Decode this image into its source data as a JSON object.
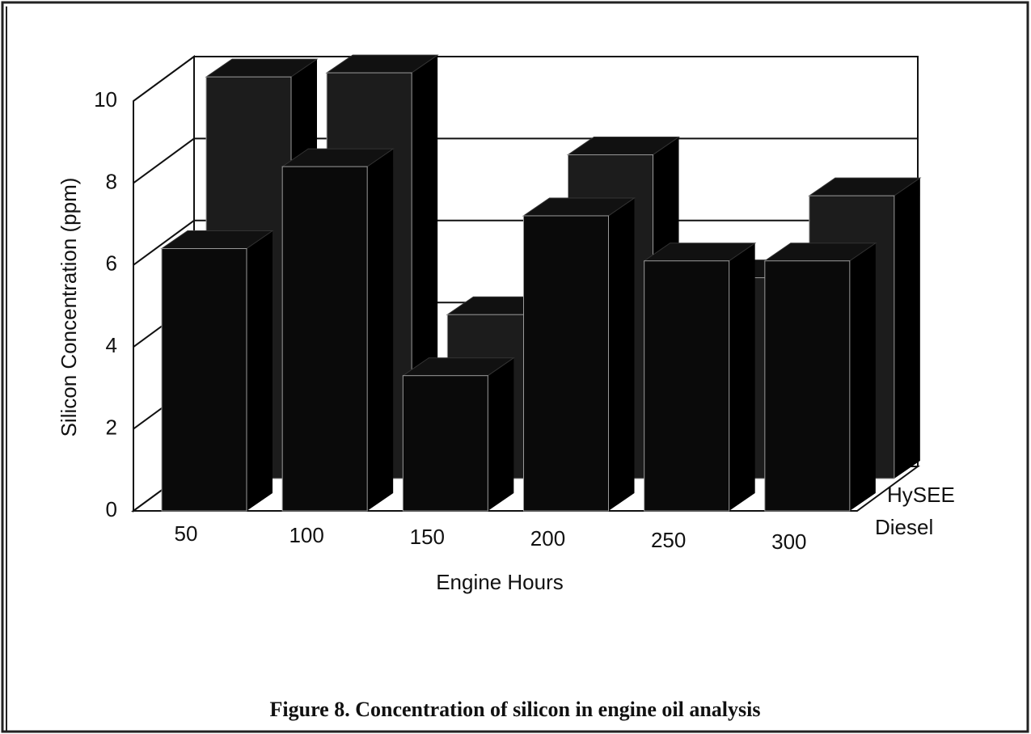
{
  "chart_data": {
    "type": "bar3d",
    "caption": "Figure 8. Concentration of silicon in engine oil analysis",
    "y_label": "Silicon Concentration (ppm)",
    "x_label": "Engine Hours",
    "categories": [
      "50",
      "100",
      "150",
      "200",
      "250",
      "300"
    ],
    "series": [
      {
        "name": "HySEE",
        "color": "#1c1c1c",
        "values": [
          9.8,
          9.9,
          4.0,
          7.9,
          4.9,
          6.9
        ]
      },
      {
        "name": "Diesel",
        "color": "#0a0a0a",
        "values": [
          6.4,
          8.4,
          3.3,
          7.2,
          6.1,
          6.1
        ]
      }
    ],
    "ylim": [
      0,
      10
    ],
    "yticks": [
      0,
      2,
      4,
      6,
      8,
      10
    ],
    "grid": true
  }
}
